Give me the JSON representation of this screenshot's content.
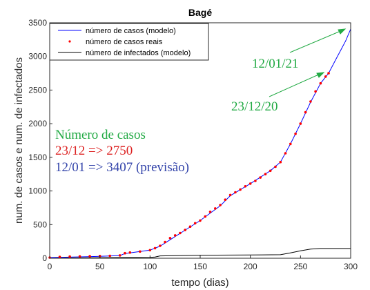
{
  "chart_data": {
    "type": "line",
    "title": "Bagé",
    "xlabel": "tempo (dias)",
    "ylabel": "num. de casos e num. de infectados",
    "xlim": [
      0,
      300
    ],
    "ylim": [
      0,
      3500
    ],
    "x_ticks": [
      "0",
      "50",
      "100",
      "150",
      "200",
      "250",
      "300"
    ],
    "y_ticks": [
      "0",
      "500",
      "1000",
      "1500",
      "2000",
      "2500",
      "3000",
      "3500"
    ],
    "grid": false,
    "legend_position": "top-right",
    "series": [
      {
        "name": "número de casos (modelo)",
        "style": "line",
        "color": "#0000ff",
        "points": [
          [
            0,
            10
          ],
          [
            50,
            28
          ],
          [
            70,
            40
          ],
          [
            75,
            70
          ],
          [
            100,
            120
          ],
          [
            110,
            180
          ],
          [
            130,
            370
          ],
          [
            150,
            560
          ],
          [
            170,
            780
          ],
          [
            180,
            930
          ],
          [
            200,
            1110
          ],
          [
            220,
            1300
          ],
          [
            230,
            1430
          ],
          [
            240,
            1700
          ],
          [
            250,
            2000
          ],
          [
            260,
            2320
          ],
          [
            270,
            2600
          ],
          [
            278,
            2750
          ],
          [
            285,
            2950
          ],
          [
            290,
            3090
          ],
          [
            295,
            3230
          ],
          [
            300,
            3407
          ]
        ]
      },
      {
        "name": "número de casos reais",
        "style": "dots",
        "color": "#ff0000",
        "points": [
          [
            0,
            10
          ],
          [
            10,
            20
          ],
          [
            20,
            25
          ],
          [
            30,
            28
          ],
          [
            40,
            30
          ],
          [
            50,
            33
          ],
          [
            60,
            36
          ],
          [
            70,
            42
          ],
          [
            75,
            75
          ],
          [
            80,
            85
          ],
          [
            90,
            100
          ],
          [
            100,
            120
          ],
          [
            105,
            150
          ],
          [
            110,
            185
          ],
          [
            115,
            240
          ],
          [
            120,
            300
          ],
          [
            125,
            340
          ],
          [
            130,
            375
          ],
          [
            135,
            420
          ],
          [
            140,
            470
          ],
          [
            145,
            520
          ],
          [
            150,
            560
          ],
          [
            155,
            620
          ],
          [
            160,
            690
          ],
          [
            165,
            740
          ],
          [
            170,
            790
          ],
          [
            175,
            870
          ],
          [
            180,
            940
          ],
          [
            185,
            980
          ],
          [
            190,
            1020
          ],
          [
            195,
            1070
          ],
          [
            200,
            1110
          ],
          [
            205,
            1150
          ],
          [
            210,
            1200
          ],
          [
            215,
            1250
          ],
          [
            220,
            1300
          ],
          [
            225,
            1360
          ],
          [
            230,
            1430
          ],
          [
            235,
            1560
          ],
          [
            240,
            1700
          ],
          [
            245,
            1850
          ],
          [
            250,
            2000
          ],
          [
            255,
            2170
          ],
          [
            260,
            2330
          ],
          [
            265,
            2480
          ],
          [
            270,
            2600
          ],
          [
            275,
            2700
          ],
          [
            278,
            2750
          ]
        ]
      },
      {
        "name": "número de infectados (modelo)",
        "style": "line",
        "color": "#000000",
        "points": [
          [
            0,
            2
          ],
          [
            50,
            8
          ],
          [
            100,
            12
          ],
          [
            105,
            18
          ],
          [
            110,
            35
          ],
          [
            150,
            45
          ],
          [
            200,
            48
          ],
          [
            230,
            52
          ],
          [
            240,
            80
          ],
          [
            250,
            110
          ],
          [
            260,
            135
          ],
          [
            270,
            145
          ],
          [
            300,
            145
          ]
        ]
      }
    ],
    "annotations": [
      {
        "text": "12/01/21",
        "color": "#22aa44",
        "arrow_to": [
          300,
          3407
        ]
      },
      {
        "text": "23/12/20",
        "color": "#22aa44",
        "arrow_to": [
          278,
          2750
        ]
      }
    ],
    "info_box": {
      "line1": {
        "text": "Número de casos",
        "color": "#22aa44"
      },
      "line2": {
        "text": "23/12 => 2750",
        "color": "#dd2222"
      },
      "line3": {
        "text": "12/01 => 3407 (previsão)",
        "color": "#3344aa"
      }
    }
  }
}
